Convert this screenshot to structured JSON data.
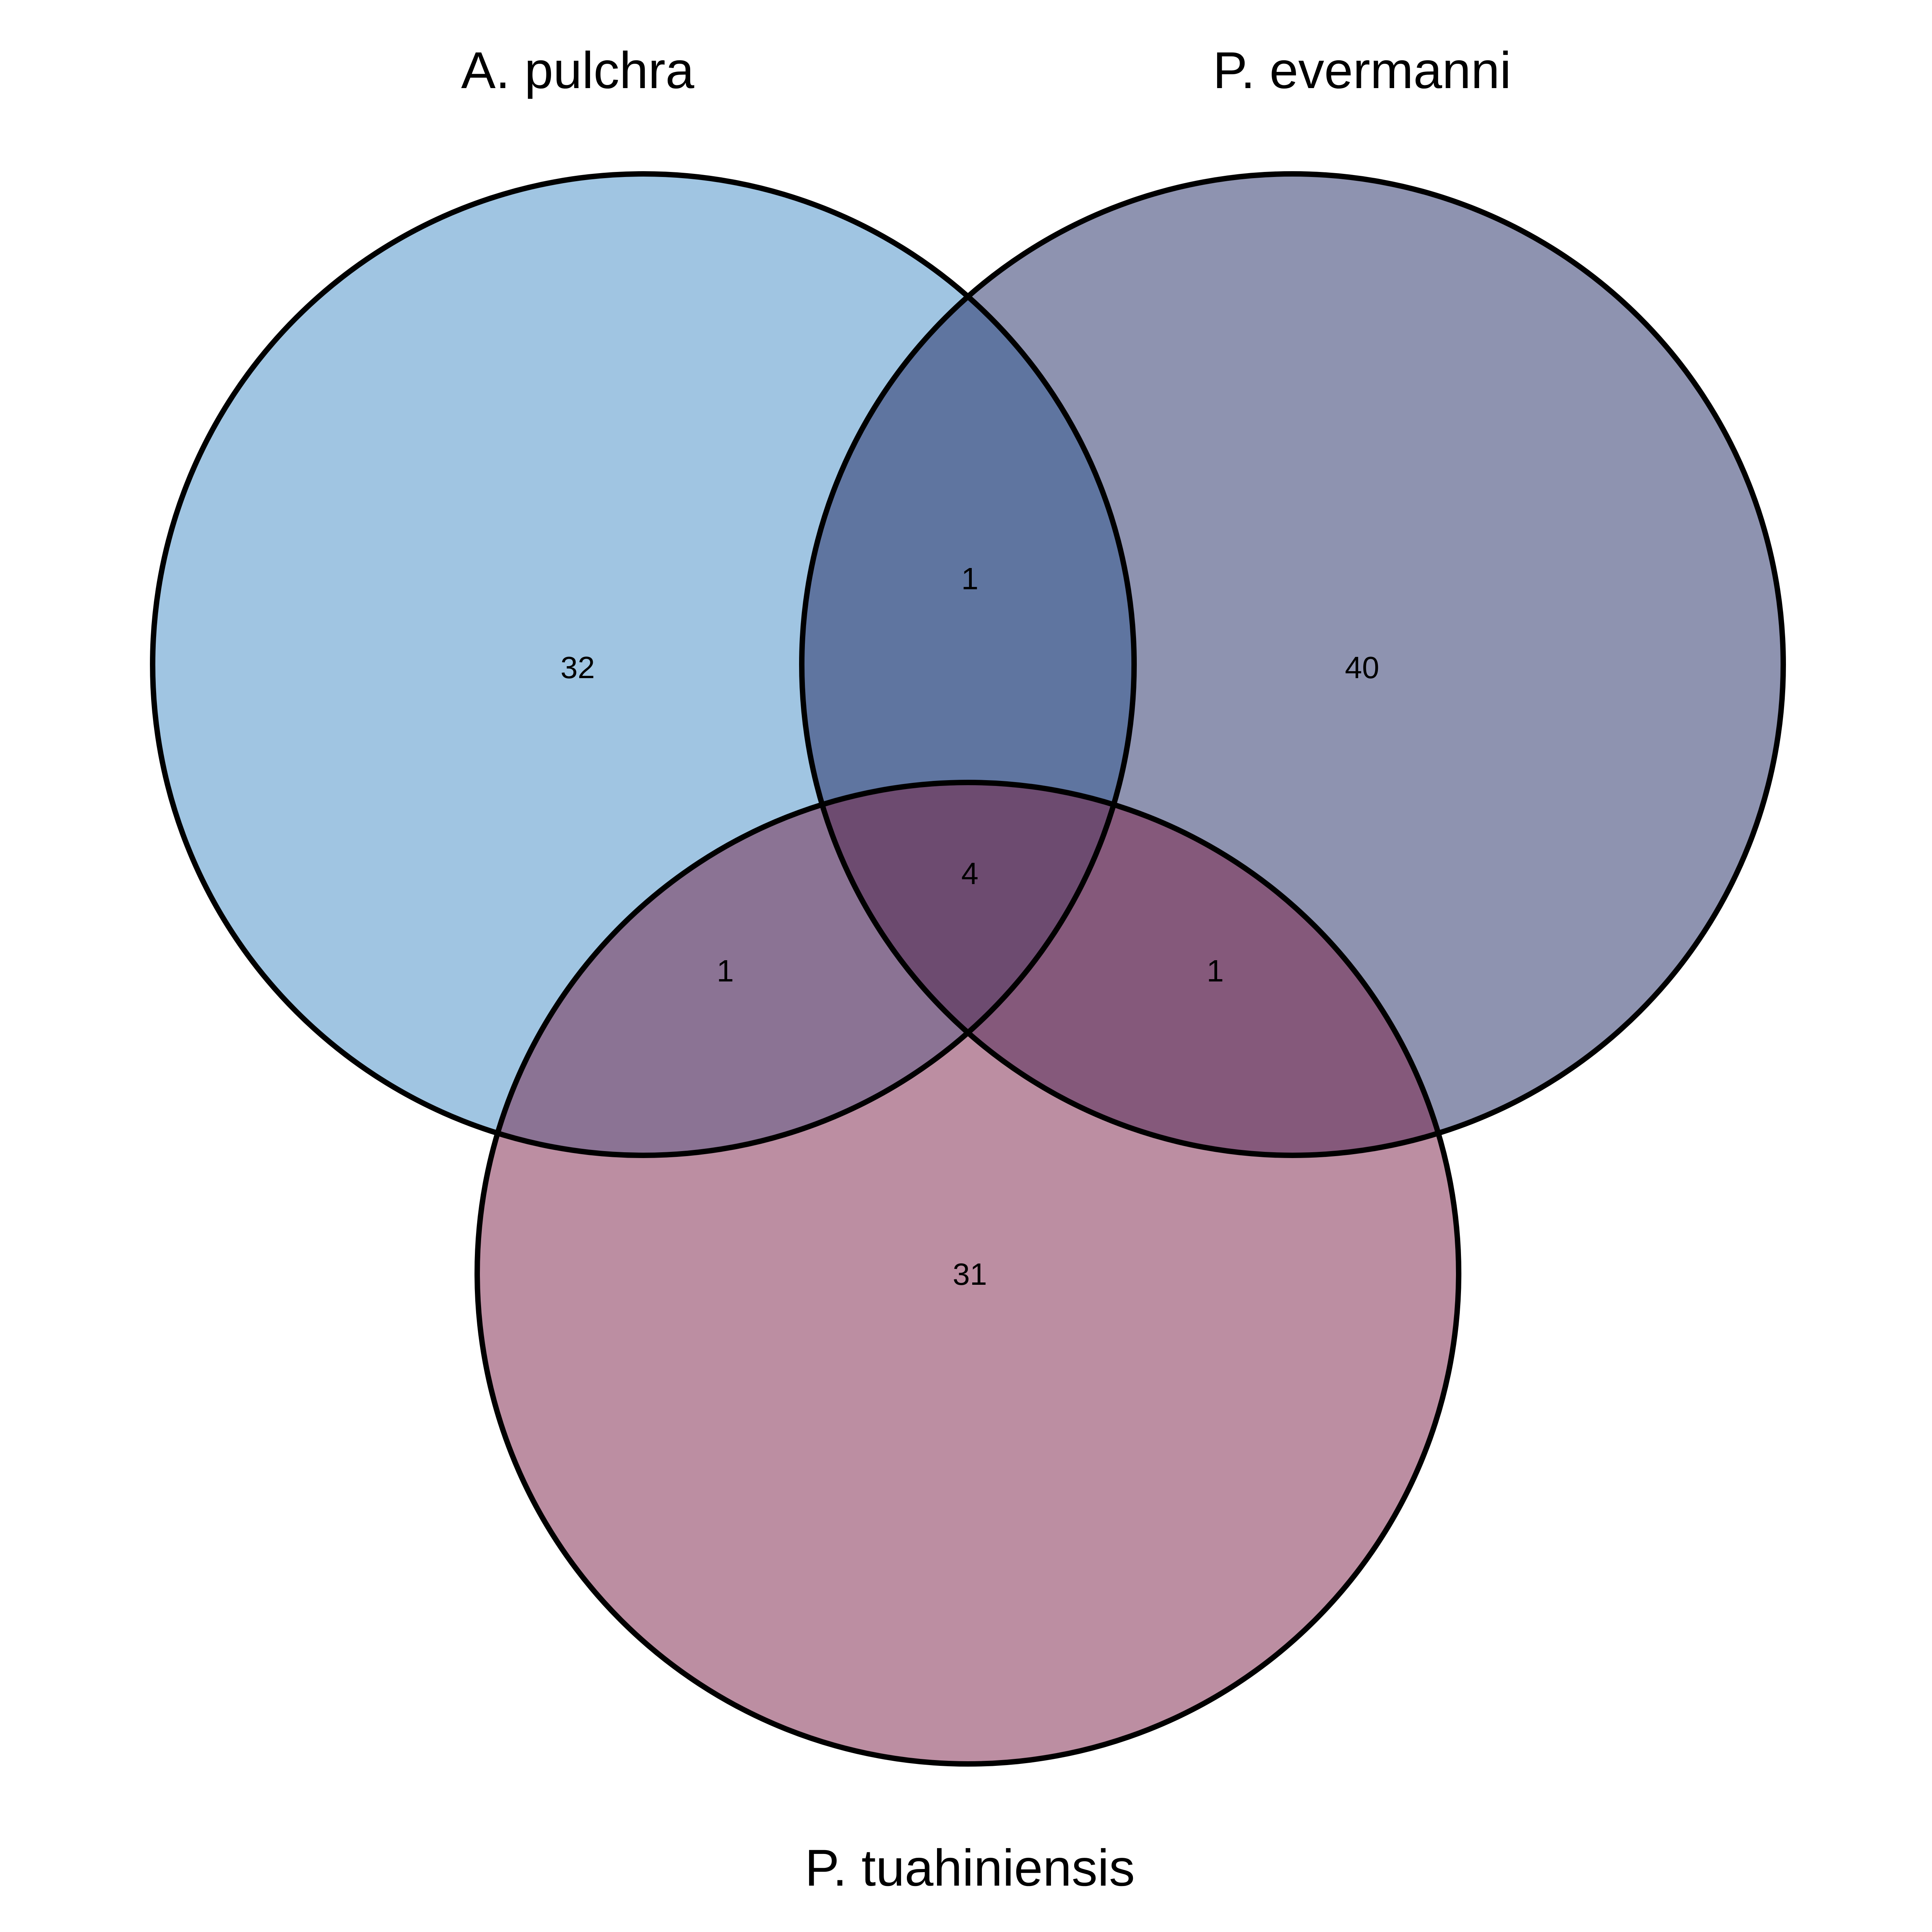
{
  "sets": {
    "a": {
      "name": "A. pulchra",
      "color": "#a0c5e2"
    },
    "b": {
      "name": "P. evermanni",
      "color": "#8e93b0"
    },
    "c": {
      "name": "P. tuahiniensis",
      "color": "#bc8ea2"
    }
  },
  "overlap_colors": {
    "ab": "#5f75a0",
    "ac": "#8b7394",
    "bc": "#85597b",
    "abc": "#6d4b70"
  },
  "counts": {
    "a_only": "32",
    "b_only": "40",
    "c_only": "31",
    "ab": "1",
    "ac": "1",
    "bc": "1",
    "abc": "4"
  }
}
